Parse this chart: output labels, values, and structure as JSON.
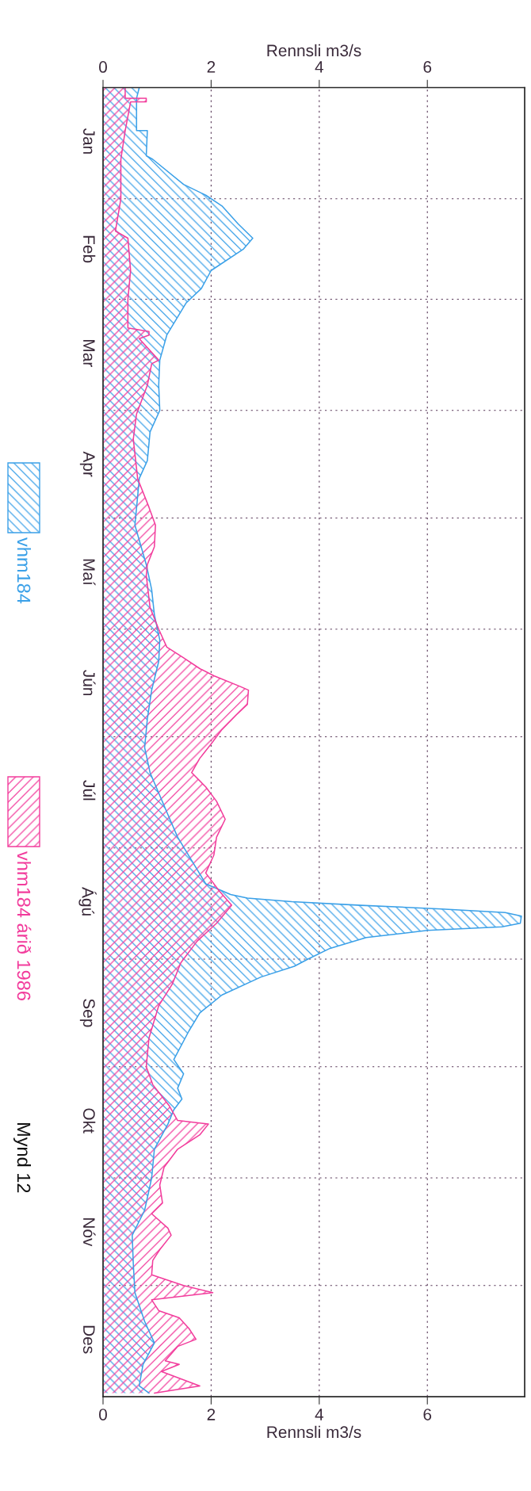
{
  "chart_data": {
    "type": "area",
    "orientation": "horizontal",
    "xlabel": "Rennsli m3/s",
    "x2label": "Rennsli m3/s",
    "xlim": [
      0,
      7.8
    ],
    "xticks": [
      0,
      2,
      4,
      6
    ],
    "x2lim": [
      0,
      7.8
    ],
    "x2ticks": [
      0,
      2,
      4,
      6
    ],
    "ylim": [
      "1987-01-01",
      "1986-01-01"
    ],
    "yticks": [
      {
        "value": "1986-01-16",
        "label": "Jan"
      },
      {
        "value": "1986-02-01",
        "label": null
      },
      {
        "value": "1986-02-15",
        "label": "Feb"
      },
      {
        "value": "1986-03-01",
        "label": null
      },
      {
        "value": "1986-03-16",
        "label": "Mar"
      },
      {
        "value": "1986-04-01",
        "label": null
      },
      {
        "value": "1986-04-16",
        "label": "Apr"
      },
      {
        "value": "1986-05-01",
        "label": null
      },
      {
        "value": "1986-05-16",
        "label": "Maí"
      },
      {
        "value": "1986-06-01",
        "label": null
      },
      {
        "value": "1986-06-16",
        "label": "Jún"
      },
      {
        "value": "1986-07-01",
        "label": null
      },
      {
        "value": "1986-07-16",
        "label": "Júl"
      },
      {
        "value": "1986-08-01",
        "label": null
      },
      {
        "value": "1986-08-16",
        "label": "Ágú"
      },
      {
        "value": "1986-09-01",
        "label": null
      },
      {
        "value": "1986-09-16",
        "label": "Sep"
      },
      {
        "value": "1986-10-01",
        "label": null
      },
      {
        "value": "1986-10-16",
        "label": "Okt"
      },
      {
        "value": "1986-11-01",
        "label": null
      },
      {
        "value": "1986-11-16",
        "label": "Nóv"
      },
      {
        "value": "1986-12-01",
        "label": null
      },
      {
        "value": "1986-12-16",
        "label": "Des"
      }
    ],
    "grid": true,
    "legend": "left",
    "annotations": [
      "Mynd 12"
    ],
    "series": [
      {
        "name": "vhm184",
        "color": "#3aa0e8",
        "x": [
          "1986-01-01",
          "1986-01-04",
          "1986-01-13",
          "1986-01-13",
          "1986-01-20",
          "1986-01-21",
          "1986-01-28",
          "1986-01-31",
          "1986-02-03",
          "1986-02-08",
          "1986-02-12",
          "1986-02-15",
          "1986-02-21",
          "1986-02-26",
          "1986-03-02",
          "1986-03-11",
          "1986-03-18",
          "1986-03-25",
          "1986-04-01",
          "1986-04-07",
          "1986-04-15",
          "1986-04-20",
          "1986-04-25",
          "1986-05-03",
          "1986-05-14",
          "1986-05-21",
          "1986-05-28",
          "1986-06-04",
          "1986-06-10",
          "1986-06-18",
          "1986-06-26",
          "1986-07-04",
          "1986-07-11",
          "1986-07-22",
          "1986-07-29",
          "1986-08-07",
          "1986-08-11",
          "1986-08-14",
          "1986-08-15",
          "1986-08-16",
          "1986-08-17",
          "1986-08-18",
          "1986-08-19",
          "1986-08-20",
          "1986-08-22",
          "1986-08-23",
          "1986-08-24",
          "1986-08-26",
          "1986-08-29",
          "1986-09-01",
          "1986-09-03",
          "1986-09-06",
          "1986-09-11",
          "1986-09-16",
          "1986-09-21",
          "1986-09-29",
          "1986-10-03",
          "1986-10-07",
          "1986-10-10",
          "1986-10-13",
          "1986-10-17",
          "1986-10-24",
          "1986-11-01",
          "1986-11-10",
          "1986-11-17",
          "1986-11-25",
          "1986-12-03",
          "1986-12-11",
          "1986-12-17",
          "1986-12-23",
          "1986-12-29",
          "1986-12-31"
        ],
        "values": [
          0.67,
          0.62,
          0.62,
          0.82,
          0.8,
          0.92,
          1.49,
          1.9,
          2.2,
          2.5,
          2.77,
          2.6,
          2.0,
          1.82,
          1.54,
          1.18,
          1.05,
          1.03,
          1.05,
          0.87,
          0.82,
          0.67,
          0.64,
          0.59,
          0.8,
          0.9,
          0.95,
          1.05,
          1.03,
          0.9,
          0.82,
          0.77,
          0.87,
          1.18,
          1.38,
          1.74,
          1.9,
          2.36,
          2.67,
          3.49,
          4.77,
          6.26,
          7.44,
          7.74,
          7.72,
          7.38,
          6.0,
          4.87,
          4.2,
          3.79,
          3.54,
          2.92,
          2.2,
          1.79,
          1.59,
          1.31,
          1.49,
          1.38,
          1.46,
          1.31,
          1.2,
          0.95,
          0.9,
          0.77,
          0.54,
          0.56,
          0.59,
          0.77,
          0.95,
          0.74,
          0.67,
          0.85
        ]
      },
      {
        "name": "vhm184 árið 1986",
        "color": "#f23c9c",
        "x": [
          "1986-01-01",
          "1986-01-04",
          "1986-01-04",
          "1986-01-05",
          "1986-01-05",
          "1986-01-13",
          "1986-01-21",
          "1986-02-01",
          "1986-02-10",
          "1986-02-12",
          "1986-02-21",
          "1986-03-01",
          "1986-03-09",
          "1986-03-10",
          "1986-03-11",
          "1986-03-12",
          "1986-03-18",
          "1986-03-19",
          "1986-03-25",
          "1986-04-02",
          "1986-04-09",
          "1986-04-20",
          "1986-04-28",
          "1986-05-03",
          "1986-05-09",
          "1986-05-14",
          "1986-05-17",
          "1986-05-26",
          "1986-06-01",
          "1986-06-06",
          "1986-06-09",
          "1986-06-12",
          "1986-06-14",
          "1986-06-17",
          "1986-06-18",
          "1986-06-22",
          "1986-06-25",
          "1986-06-29",
          "1986-07-03",
          "1986-07-07",
          "1986-07-11",
          "1986-07-15",
          "1986-07-19",
          "1986-07-24",
          "1986-07-29",
          "1986-08-03",
          "1986-08-08",
          "1986-08-13",
          "1986-08-17",
          "1986-08-22",
          "1986-08-27",
          "1986-09-02",
          "1986-09-08",
          "1986-09-14",
          "1986-09-23",
          "1986-10-01",
          "1986-10-06",
          "1986-10-12",
          "1986-10-16",
          "1986-10-17",
          "1986-10-20",
          "1986-10-24",
          "1986-10-29",
          "1986-11-03",
          "1986-11-08",
          "1986-11-11",
          "1986-11-15",
          "1986-11-17",
          "1986-11-21",
          "1986-11-24",
          "1986-11-28",
          "1986-12-01",
          "1986-12-03",
          "1986-12-05",
          "1986-12-08",
          "1986-12-10",
          "1986-12-13",
          "1986-12-16",
          "1986-12-18",
          "1986-12-22",
          "1986-12-23",
          "1986-12-25",
          "1986-12-29",
          "1986-12-31"
        ],
        "values": [
          0.41,
          0.41,
          0.8,
          0.8,
          0.51,
          0.41,
          0.33,
          0.33,
          0.23,
          0.46,
          0.51,
          0.46,
          0.46,
          0.85,
          0.85,
          0.67,
          1.03,
          0.9,
          0.82,
          0.62,
          0.56,
          0.64,
          0.85,
          0.97,
          0.95,
          0.82,
          0.8,
          0.87,
          1.03,
          1.18,
          1.49,
          1.79,
          2.05,
          2.54,
          2.69,
          2.67,
          2.46,
          2.2,
          2.0,
          1.79,
          1.64,
          1.9,
          2.1,
          2.26,
          2.1,
          2.05,
          1.9,
          2.15,
          2.38,
          2.1,
          1.74,
          1.44,
          1.28,
          1.03,
          0.85,
          0.8,
          0.92,
          1.23,
          1.38,
          1.95,
          1.79,
          1.38,
          1.13,
          1.05,
          1.1,
          0.9,
          1.2,
          1.26,
          1.05,
          0.92,
          0.9,
          1.49,
          2.03,
          0.9,
          1.03,
          1.41,
          1.59,
          1.72,
          1.38,
          1.15,
          1.41,
          1.08,
          1.79,
          0.95
        ]
      }
    ]
  }
}
